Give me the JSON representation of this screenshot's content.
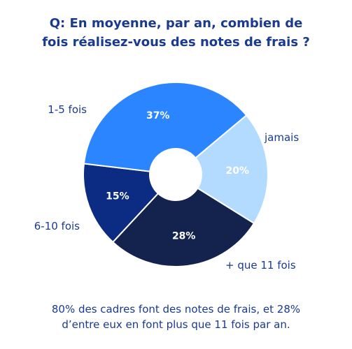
{
  "question": {
    "line1": "Q: En moyenne, par an, combien de",
    "line2": "fois réalisez-vous des notes de frais ?"
  },
  "chart_data": {
    "type": "pie",
    "donut": true,
    "categories": [
      "jamais",
      "+ que 11 fois",
      "6-10 fois",
      "1-5 fois"
    ],
    "values": [
      20,
      28,
      15,
      37
    ],
    "value_labels": [
      "20%",
      "28%",
      "15%",
      "37%"
    ],
    "colors": [
      "#b3dbff",
      "#13234e",
      "#0c2c84",
      "#2a85ff"
    ],
    "label_colors": [
      "#ffffff",
      "#ffffff",
      "#ffffff",
      "#ffffff"
    ]
  },
  "footer": {
    "line1": "80% des cadres font des notes de frais, et 28%",
    "line2": "d’entre eux en font plus que 11 fois par an."
  }
}
